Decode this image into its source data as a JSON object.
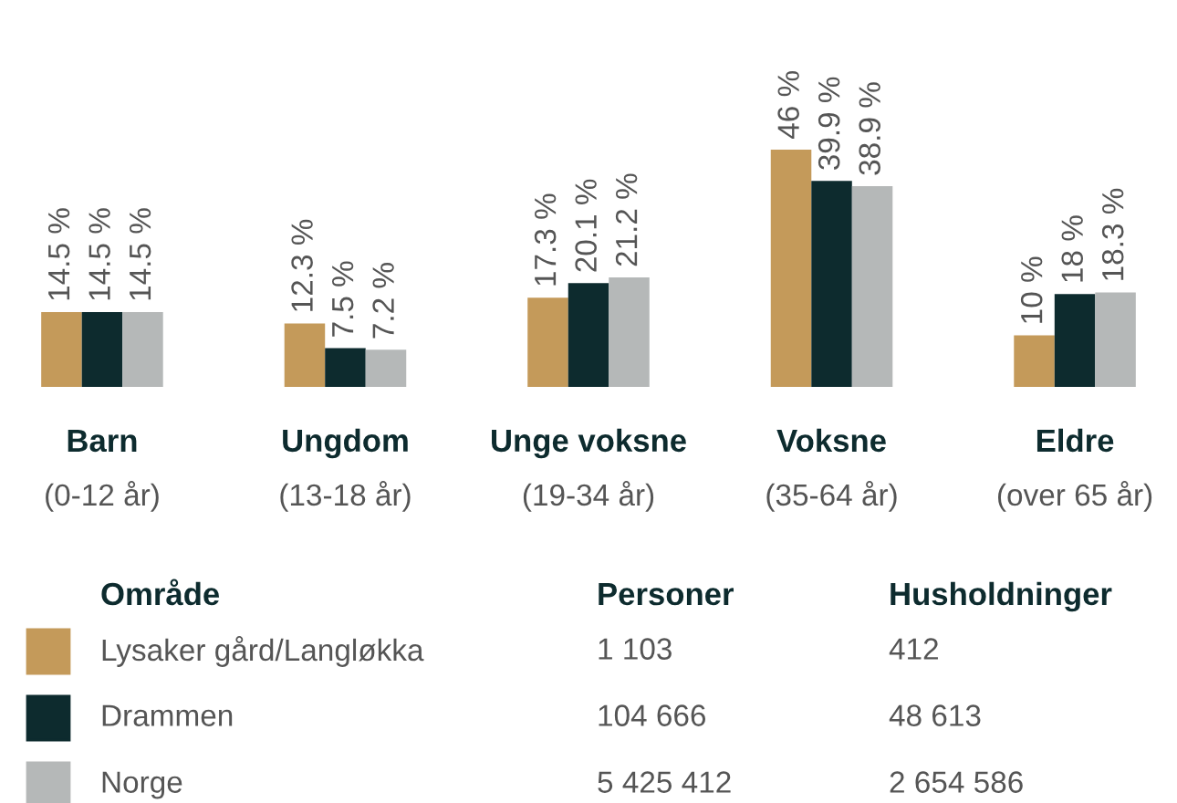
{
  "chart_data": {
    "type": "bar",
    "categories": [
      "Barn\n(0-12 år)",
      "Ungdom\n(13-18 år)",
      "Unge voksne\n(19-34 år)",
      "Voksne\n(35-64 år)",
      "Eldre\n(over 65 år)"
    ],
    "series": [
      {
        "name": "Lysaker gård/Langløkka",
        "color": "#c49a5a",
        "values": [
          14.5,
          12.3,
          17.3,
          46,
          10
        ],
        "value_labels": [
          "14.5 %",
          "12.3 %",
          "17.3 %",
          "46 %",
          "10 %"
        ]
      },
      {
        "name": "Drammen",
        "color": "#0d2b2e",
        "values": [
          14.5,
          7.5,
          20.1,
          39.9,
          18
        ],
        "value_labels": [
          "14.5 %",
          "7.5 %",
          "20.1 %",
          "39.9 %",
          "18 %"
        ]
      },
      {
        "name": "Norge",
        "color": "#b5b8b8",
        "values": [
          14.5,
          7.2,
          21.2,
          38.9,
          18.3
        ],
        "value_labels": [
          "14.5 %",
          "7.2 %",
          "21.2 %",
          "38.9 %",
          "18.3 %"
        ]
      }
    ],
    "legend": "bottom",
    "legend_title": "Område",
    "annotations": [
      "Personer",
      "Husholdninger",
      "1 103",
      "412",
      "104 666",
      "48 613",
      "5 425 412",
      "2 654 586"
    ]
  }
}
